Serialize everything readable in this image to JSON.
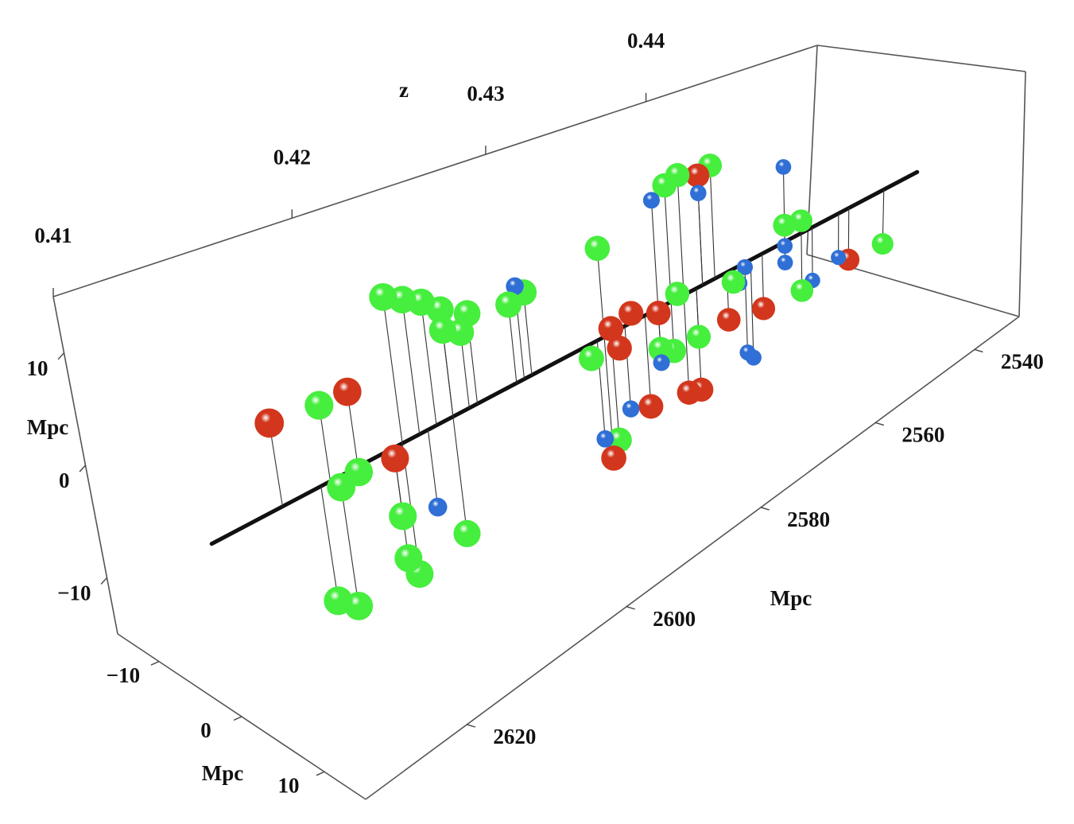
{
  "chart_data": {
    "type": "scatter3d",
    "xlabel": "Mpc",
    "ylabel": "Mpc",
    "zlabel": "Mpc",
    "redshift_label": "z",
    "xlim": [
      2631,
      2530
    ],
    "ylim": [
      -15,
      15
    ],
    "zlim": [
      -15,
      15
    ],
    "xticks": [
      2540,
      2560,
      2580,
      2600,
      2620
    ],
    "yticks": [
      {
        "value": -10,
        "label": "−10"
      },
      0,
      10
    ],
    "zticks": [
      {
        "value": -10,
        "label": "−10"
      },
      0,
      10
    ],
    "redshift_lim": [
      0.41,
      0.453
    ],
    "redshift_ticks": [
      0.41,
      0.42,
      0.43,
      0.44
    ],
    "series": [
      {
        "color": "#46ee3e",
        "size": 19,
        "x": [
          2609,
          2607,
          2605,
          2611,
          2602,
          2603,
          2605,
          2597,
          2595,
          2585,
          2575,
          2568,
          2573,
          2574,
          2571,
          2575,
          2577,
          2556,
          2553,
          2537,
          2565,
          2553,
          2619,
          2618,
          2616,
          2612,
          2612,
          2611,
          2605,
          2620,
          2618,
          2584,
          2587
        ],
        "y": [
          0,
          0,
          0,
          0,
          0,
          0,
          0,
          0,
          0,
          0,
          0,
          0,
          0,
          0,
          0,
          0,
          0,
          0,
          0,
          0,
          0,
          0,
          0,
          0,
          0,
          0,
          0,
          0,
          0,
          0,
          0,
          0,
          0
        ],
        "z": [
          13,
          12,
          10.5,
          14,
          9,
          7.5,
          8.5,
          8,
          8.5,
          9.5,
          13,
          13,
          13.5,
          0.5,
          -5.5,
          -5.5,
          -4.5,
          2,
          1.5,
          -7,
          -1.5,
          -7,
          7,
          -1,
          -0.5,
          -6.5,
          -10.5,
          -12.5,
          -11.5,
          -10.5,
          -12,
          -11.5,
          -1.5
        ]
      },
      {
        "color": "#d2361c",
        "size": 19,
        "x": [
          2624,
          2616,
          2612,
          2584,
          2581,
          2583,
          2577,
          2570,
          2573,
          2571,
          2566,
          2560,
          2579,
          2585,
          2544
        ],
        "y": [
          0,
          0,
          0,
          0,
          0,
          0,
          0,
          0,
          0,
          0,
          0,
          0,
          0,
          0,
          0
        ],
        "z": [
          7.5,
          7,
          -1,
          0.5,
          1,
          -2,
          -0.5,
          12.5,
          -11,
          -11.5,
          -5.5,
          -6.5,
          -10,
          -13,
          -6.5
        ]
      },
      {
        "color": "#2f6fd6",
        "size": 13,
        "x": [
          2608,
          2577,
          2570,
          2556,
          2563,
          2564,
          2556,
          2556,
          2551,
          2546,
          2563,
          2562,
          2577,
          2582,
          2586,
          2596
        ],
        "y": [
          0,
          0,
          0,
          0,
          0,
          0,
          0,
          0,
          0,
          0,
          0,
          0,
          0,
          0,
          0,
          0
        ],
        "z": [
          -7.5,
          12,
          10.5,
          9,
          -0.5,
          -2,
          -0.5,
          -2.5,
          -6.5,
          -5.5,
          -10.5,
          -11.5,
          -6,
          -9,
          -10.5,
          9.5
        ]
      }
    ]
  }
}
